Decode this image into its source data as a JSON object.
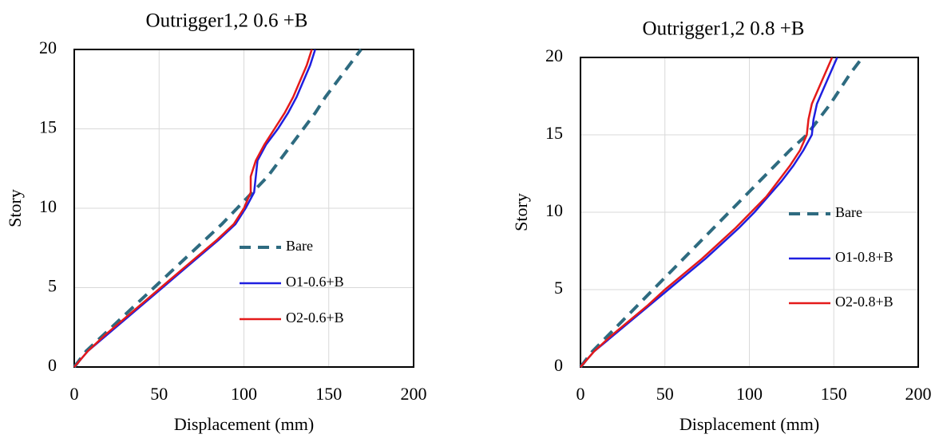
{
  "chart_data": [
    {
      "type": "line",
      "title": "Outrigger1,2 0.6 +B",
      "xlabel": "Displacement (mm)",
      "ylabel": "Story",
      "xlim": [
        0,
        200
      ],
      "xticks": [
        0,
        50,
        100,
        150,
        200
      ],
      "ylim": [
        0,
        20
      ],
      "yticks": [
        0,
        5,
        10,
        15,
        20
      ],
      "grid": true,
      "series": [
        {
          "name": "Bare",
          "color": "#2e6b80",
          "dashed": true,
          "x": [
            0,
            7,
            17,
            27,
            37,
            47,
            57,
            67,
            77,
            87,
            96,
            105,
            114,
            121,
            128,
            135,
            142,
            148,
            155,
            162,
            169
          ],
          "values": [
            0,
            1,
            2,
            3,
            4,
            5,
            6,
            7,
            8,
            9,
            10,
            11,
            12,
            13,
            14,
            15,
            16,
            17,
            18,
            19,
            20
          ]
        },
        {
          "name": "O1-0.6+B",
          "color": "#1f1fe0",
          "dashed": false,
          "x": [
            0,
            8,
            19,
            30,
            41,
            52,
            63,
            74,
            85,
            95,
            101,
            106,
            107,
            108,
            113,
            120,
            126,
            131,
            135,
            139,
            142
          ],
          "values": [
            0,
            1,
            2,
            3,
            4,
            5,
            6,
            7,
            8,
            9,
            10,
            11,
            12,
            13,
            14,
            15,
            16,
            17,
            18,
            19,
            20
          ]
        },
        {
          "name": "O2-0.6+B",
          "color": "#e41a1a",
          "dashed": false,
          "x": [
            0,
            8,
            18,
            29,
            40,
            51,
            62,
            73,
            84,
            94,
            100,
            104,
            104,
            107,
            112,
            118,
            124,
            129,
            133,
            137,
            140
          ],
          "values": [
            0,
            1,
            2,
            3,
            4,
            5,
            6,
            7,
            8,
            9,
            10,
            11,
            12,
            13,
            14,
            15,
            16,
            17,
            18,
            19,
            20
          ]
        }
      ]
    },
    {
      "type": "line",
      "title": "Outrigger1,2 0.8 +B",
      "xlabel": "Displacement (mm)",
      "ylabel": "Story",
      "xlim": [
        0,
        200
      ],
      "xticks": [
        0,
        50,
        100,
        150,
        200
      ],
      "ylim": [
        0,
        20
      ],
      "yticks": [
        0,
        5,
        10,
        15,
        20
      ],
      "grid": true,
      "series": [
        {
          "name": "Bare",
          "color": "#2e6b80",
          "dashed": true,
          "x": [
            0,
            7,
            16,
            25,
            34,
            43,
            52,
            61,
            70,
            79,
            88,
            97,
            106,
            115,
            124,
            134,
            141,
            148,
            154,
            160,
            167
          ],
          "values": [
            0,
            1,
            2,
            3,
            4,
            5,
            6,
            7,
            8,
            9,
            10,
            11,
            12,
            13,
            14,
            15,
            16,
            17,
            18,
            19,
            20
          ]
        },
        {
          "name": "O1-0.8+B",
          "color": "#1f1fe0",
          "dashed": false,
          "x": [
            0,
            8,
            19,
            30,
            41,
            52,
            63,
            74,
            84,
            94,
            103,
            111,
            119,
            126,
            132,
            137,
            138,
            140,
            144,
            148,
            152
          ],
          "values": [
            0,
            1,
            2,
            3,
            4,
            5,
            6,
            7,
            8,
            9,
            10,
            11,
            12,
            13,
            14,
            15,
            16,
            17,
            18,
            19,
            20
          ]
        },
        {
          "name": "O2-0.8+B",
          "color": "#e41a1a",
          "dashed": false,
          "x": [
            0,
            8,
            18,
            29,
            40,
            50,
            61,
            72,
            82,
            92,
            101,
            110,
            117,
            124,
            130,
            134,
            135,
            137,
            141,
            145,
            149
          ],
          "values": [
            0,
            1,
            2,
            3,
            4,
            5,
            6,
            7,
            8,
            9,
            10,
            11,
            12,
            13,
            14,
            15,
            16,
            17,
            18,
            19,
            20
          ]
        }
      ]
    }
  ]
}
